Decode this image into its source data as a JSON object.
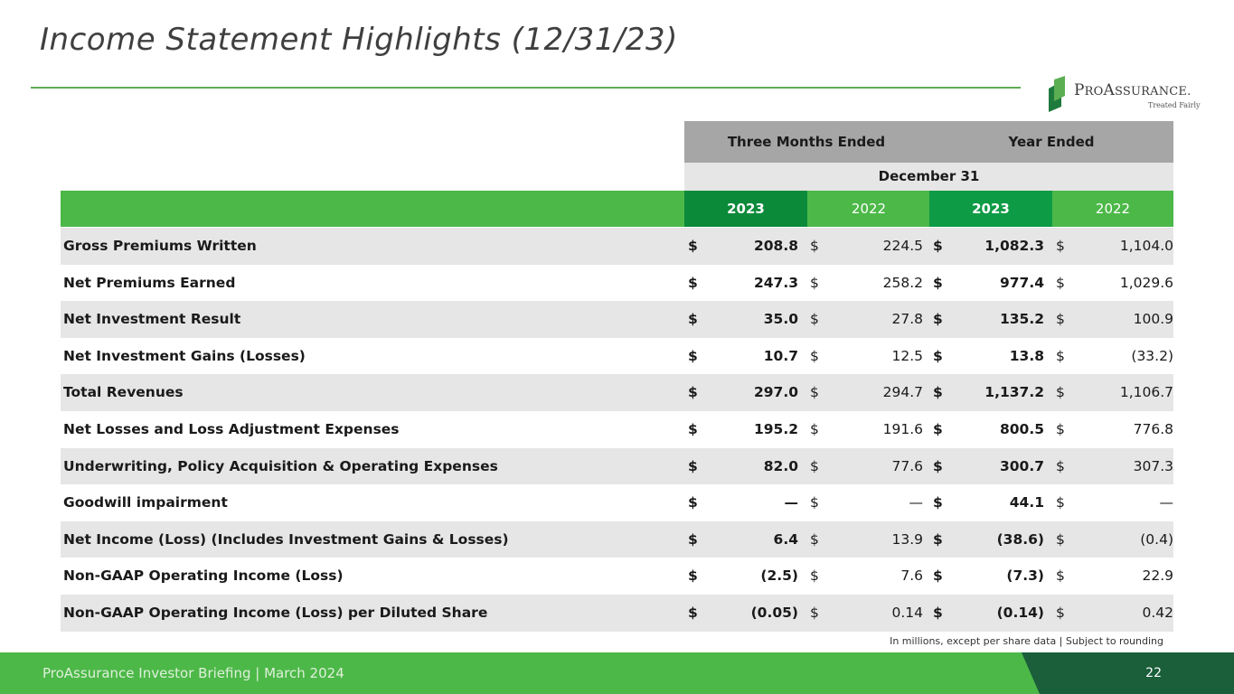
{
  "title": "Income Statement Highlights (12/31/23)",
  "logo": {
    "first_big": "P",
    "first_rest": "RO",
    "second_big": "A",
    "second_rest": "SSURANCE",
    "mark": ".",
    "tagline": "Treated Fairly"
  },
  "colors": {
    "green": "#4cb848",
    "dark_green": "#0b8a3a",
    "mid_green": "#0e9b45",
    "footer_dark": "#1b5e3a",
    "header_gray": "#a6a6a6",
    "row_shade": "#e6e6e6"
  },
  "table": {
    "header_three_months": "Three Months Ended",
    "header_year": "Year Ended",
    "header_date": "December 31",
    "years": [
      "2023",
      "2022",
      "2023",
      "2022"
    ],
    "rows": [
      {
        "label": "Gross Premiums Written",
        "v": [
          "208.8",
          "224.5",
          "1,082.3",
          "1,104.0"
        ]
      },
      {
        "label": "Net Premiums Earned",
        "v": [
          "247.3",
          "258.2",
          "977.4",
          "1,029.6"
        ]
      },
      {
        "label": "Net Investment Result",
        "v": [
          "35.0",
          "27.8",
          "135.2",
          "100.9"
        ]
      },
      {
        "label": "Net Investment Gains (Losses)",
        "v": [
          "10.7",
          "12.5",
          "13.8",
          "(33.2)"
        ]
      },
      {
        "label": "Total Revenues",
        "v": [
          "297.0",
          "294.7",
          "1,137.2",
          "1,106.7"
        ]
      },
      {
        "label": "Net Losses and Loss Adjustment Expenses",
        "v": [
          "195.2",
          "191.6",
          "800.5",
          "776.8"
        ]
      },
      {
        "label": "Underwriting, Policy Acquisition & Operating Expenses",
        "v": [
          "82.0",
          "77.6",
          "300.7",
          "307.3"
        ]
      },
      {
        "label": "Goodwill impairment",
        "v": [
          "—",
          "—",
          "44.1",
          "—"
        ]
      },
      {
        "label": "Net Income (Loss) (Includes Investment Gains & Losses)",
        "v": [
          "6.4",
          "13.9",
          "(38.6)",
          "(0.4)"
        ]
      },
      {
        "label": "Non-GAAP Operating Income (Loss)",
        "v": [
          "(2.5)",
          "7.6",
          "(7.3)",
          "22.9"
        ]
      },
      {
        "label": "Non-GAAP Operating Income (Loss) per Diluted Share",
        "v": [
          "(0.05)",
          "0.14",
          "(0.14)",
          "0.42"
        ]
      }
    ],
    "currency": "$"
  },
  "footnote": "In millions, except per share data  |  Subject to rounding",
  "footer": {
    "text": "ProAssurance Investor Briefing | March 2024",
    "page": "22"
  }
}
